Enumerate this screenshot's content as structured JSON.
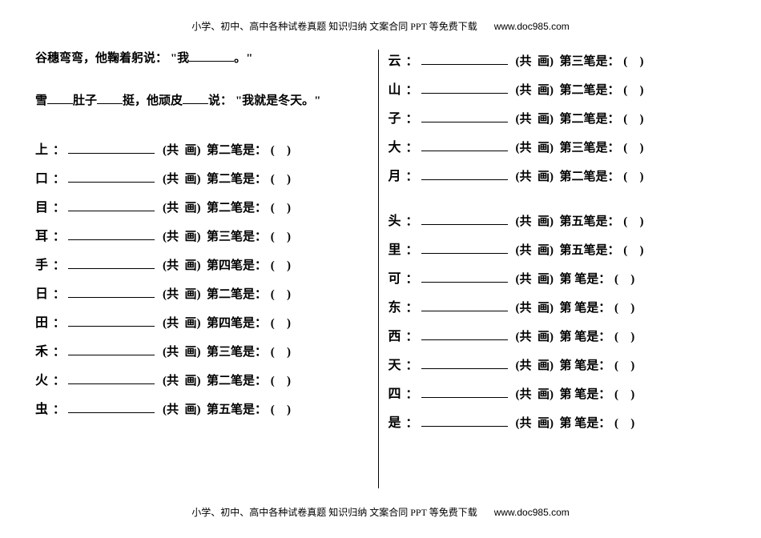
{
  "header": {
    "text": "小学、初中、高中各种试卷真题 知识归纳 文案合同 PPT 等免费下载",
    "url": "www.doc985.com"
  },
  "footer": {
    "text": "小学、初中、高中各种试卷真题 知识归纳 文案合同 PPT 等免费下载",
    "url": "www.doc985.com"
  },
  "left": {
    "sentences": [
      {
        "pre": "谷穗弯弯，他鞠着躬说：",
        "open": "\"",
        "mid1": "我",
        "blank": "med",
        "mid2": "。",
        "close": "\""
      },
      {
        "pre": "雪",
        "blank1": "short",
        "mid1": "肚子",
        "blank2": "short",
        "mid2": "挺，他顽皮",
        "blank3": "short",
        "mid3": "说：",
        "open": "\"",
        "mid4": "我就是冬天。",
        "close": "\""
      }
    ],
    "rows": [
      {
        "char": "上",
        "stroke": "第二笔是"
      },
      {
        "char": "口",
        "stroke": "第二笔是"
      },
      {
        "char": "目",
        "stroke": "第二笔是"
      },
      {
        "char": "耳",
        "stroke": "第三笔是"
      },
      {
        "char": "手",
        "stroke": "第四笔是"
      },
      {
        "char": "日",
        "stroke": "第二笔是"
      },
      {
        "char": "田",
        "stroke": "第四笔是"
      },
      {
        "char": "禾",
        "stroke": "第三笔是"
      },
      {
        "char": "火",
        "stroke": "第二笔是"
      },
      {
        "char": "虫",
        "stroke": "第五笔是"
      }
    ]
  },
  "right": {
    "group1": [
      {
        "char": "云",
        "stroke": "第三笔是"
      },
      {
        "char": "山",
        "stroke": "第二笔是"
      },
      {
        "char": "子",
        "stroke": "第二笔是"
      },
      {
        "char": "大",
        "stroke": "第三笔是"
      },
      {
        "char": "月",
        "stroke": "第二笔是"
      }
    ],
    "group2": [
      {
        "char": "头",
        "stroke": "第五笔是"
      },
      {
        "char": "里",
        "stroke": "第五笔是"
      },
      {
        "char": "可",
        "stroke": "第 笔是"
      },
      {
        "char": "东",
        "stroke": "第 笔是"
      },
      {
        "char": "西",
        "stroke": "第 笔是"
      },
      {
        "char": "天",
        "stroke": "第 笔是"
      },
      {
        "char": "四",
        "stroke": "第 笔是"
      },
      {
        "char": "是",
        "stroke": "第 笔是"
      }
    ]
  },
  "labels": {
    "total_open": "(共",
    "total_close": "画)",
    "paren_open": "(",
    "paren_close": ")",
    "colon": "："
  }
}
